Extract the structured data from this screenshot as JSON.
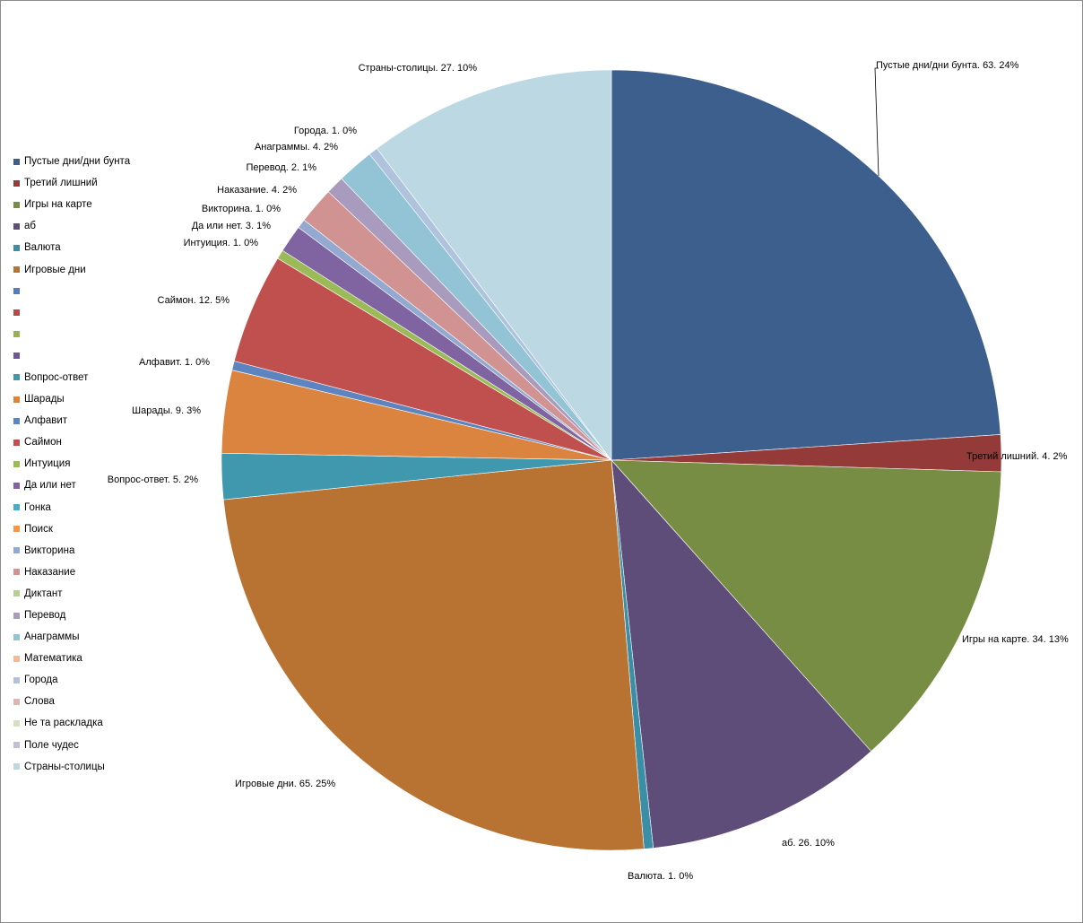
{
  "chart_data": {
    "type": "pie",
    "categories": [
      "Пустые дни/дни бунта",
      "Третий лишний",
      "Игры на карте",
      "аб",
      "Валюта",
      "Игровые дни",
      "",
      "",
      "",
      "",
      "Вопрос-ответ",
      "Шарады",
      "Алфавит",
      "Саймон",
      "Интуиция",
      "Да или нет",
      "Гонка",
      "Поиск",
      "Викторина",
      "Наказание",
      "Диктант",
      "Перевод",
      "Анаграммы",
      "Математика",
      "Города",
      "Слова",
      "Не та раскладка",
      "Поле чудес",
      "Страны-столицы"
    ],
    "values": [
      63,
      4,
      34,
      26,
      1,
      65,
      0,
      0,
      0,
      0,
      5,
      9,
      1,
      12,
      1,
      3,
      0,
      0,
      1,
      4,
      0,
      2,
      4,
      0,
      1,
      0,
      0,
      0,
      27
    ],
    "colors": [
      "#3c5f8e",
      "#943a38",
      "#778d43",
      "#5e4c79",
      "#3a8ea6",
      "#b87232",
      "#4f7fc0",
      "#b34a46",
      "#95b450",
      "#6f5694",
      "#3f98ad",
      "#db843f",
      "#5e84bf",
      "#c0504d",
      "#9bbb59",
      "#8064a2",
      "#4bacc6",
      "#f79646",
      "#93a9cf",
      "#d19392",
      "#b9cd96",
      "#a99bbd",
      "#92c4d5",
      "#f9b990",
      "#b0c3dd",
      "#e0b4b3",
      "#d4e0c0",
      "#c5bcd6",
      "#bcd8e3"
    ],
    "labels": [
      {
        "category": "Пустые дни/дни бунта",
        "text": "Пустые дни/дни бунта. 63. 24%"
      },
      {
        "category": "Третий лишний",
        "text": "Третий лишний. 4. 2%"
      },
      {
        "category": "Игры на карте",
        "text": "Игры на карте. 34. 13%"
      },
      {
        "category": "аб",
        "text": "аб. 26. 10%"
      },
      {
        "category": "Валюта",
        "text": "Валюта. 1. 0%"
      },
      {
        "category": "Игровые дни",
        "text": "Игровые дни. 65. 25%"
      },
      {
        "category": "Вопрос-ответ",
        "text": "Вопрос-ответ.  5. 2%"
      },
      {
        "category": "Шарады",
        "text": "Шарады. 9. 3%"
      },
      {
        "category": "Алфавит",
        "text": "Алфавит. 1. 0%"
      },
      {
        "category": "Саймон",
        "text": "Саймон. 12. 5%"
      },
      {
        "category": "Интуиция",
        "text": "Интуиция.  1. 0%"
      },
      {
        "category": "Да или нет",
        "text": "Да или нет.  3. 1%"
      },
      {
        "category": "Викторина",
        "text": "Викторина.  1. 0%"
      },
      {
        "category": "Наказание",
        "text": "Наказание. 4. 2%"
      },
      {
        "category": "Перевод",
        "text": "Перевод.  2. 1%"
      },
      {
        "category": "Анаграммы",
        "text": "Анаграммы. 4. 2%"
      },
      {
        "category": "Города",
        "text": "Города. 1. 0%"
      },
      {
        "category": "Страны-столицы",
        "text": "Страны-столицы. 27. 10%"
      }
    ],
    "legend_position": "left"
  }
}
